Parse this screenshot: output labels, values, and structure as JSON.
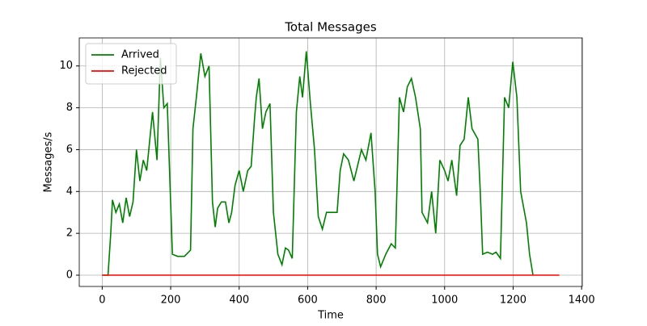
{
  "chart_data": {
    "type": "line",
    "title": "Total Messages",
    "x_label": "Time",
    "y_label": "Messages/s",
    "xlim": [
      -67,
      1402
    ],
    "ylim": [
      -0.54,
      11.34
    ],
    "xticks": [
      0,
      200,
      400,
      600,
      800,
      1000,
      1200,
      1400
    ],
    "yticks": [
      0,
      2,
      4,
      6,
      8,
      10
    ],
    "grid": true,
    "legend": "upper left",
    "series": [
      {
        "name": "Arrived",
        "color": "#008000",
        "x": [
          0,
          17,
          25,
          30,
          40,
          50,
          60,
          70,
          80,
          90,
          100,
          110,
          120,
          130,
          147,
          160,
          170,
          180,
          190,
          205,
          220,
          240,
          258,
          265,
          275,
          288,
          300,
          312,
          322,
          330,
          337,
          348,
          360,
          370,
          378,
          388,
          400,
          412,
          425,
          435,
          445,
          450,
          458,
          468,
          478,
          490,
          500,
          513,
          525,
          535,
          544,
          555,
          567,
          577,
          585,
          596,
          608,
          620,
          631,
          643,
          655,
          667,
          686,
          695,
          705,
          719,
          735,
          757,
          770,
          785,
          797,
          804,
          813,
          828,
          844,
          856,
          868,
          880,
          891,
          903,
          915,
          929,
          934,
          950,
          962,
          974,
          986,
          1000,
          1010,
          1021,
          1035,
          1045,
          1057,
          1069,
          1080,
          1097,
          1104,
          1111,
          1125,
          1140,
          1150,
          1163,
          1175,
          1187,
          1199,
          1211,
          1222,
          1239,
          1248,
          1258
        ],
        "values": [
          0,
          0,
          2,
          3.6,
          3,
          3.4,
          2.5,
          3.7,
          2.8,
          3.5,
          6,
          4.5,
          5.5,
          5,
          7.8,
          5.5,
          10.4,
          8,
          8.2,
          1,
          0.9,
          0.9,
          1.2,
          7,
          8.5,
          10.6,
          9.5,
          10,
          3.5,
          2.3,
          3.2,
          3.5,
          3.5,
          2.5,
          3,
          4.3,
          5,
          4,
          5,
          5.2,
          7.5,
          8.5,
          9.4,
          7,
          7.8,
          8.2,
          3,
          1,
          0.5,
          1.3,
          1.2,
          0.8,
          7.8,
          9.5,
          8.5,
          10.7,
          8.2,
          6,
          2.8,
          2.2,
          3,
          3,
          3,
          5,
          5.8,
          5.5,
          4.5,
          6,
          5.5,
          6.8,
          4,
          1,
          0.4,
          1,
          1.5,
          1.3,
          8.5,
          7.8,
          9,
          9.4,
          8.5,
          7,
          3,
          2.5,
          4,
          2,
          5.5,
          5,
          4.5,
          5.5,
          3.8,
          6.2,
          6.5,
          8.5,
          7,
          6.5,
          4,
          1,
          1.1,
          1,
          1.1,
          0.8,
          8.5,
          8,
          10.2,
          8.5,
          4,
          2.5,
          1,
          0
        ]
      },
      {
        "name": "Rejected",
        "color": "#ff0000",
        "x": [
          0,
          1335
        ],
        "values": [
          0,
          0
        ]
      }
    ]
  }
}
